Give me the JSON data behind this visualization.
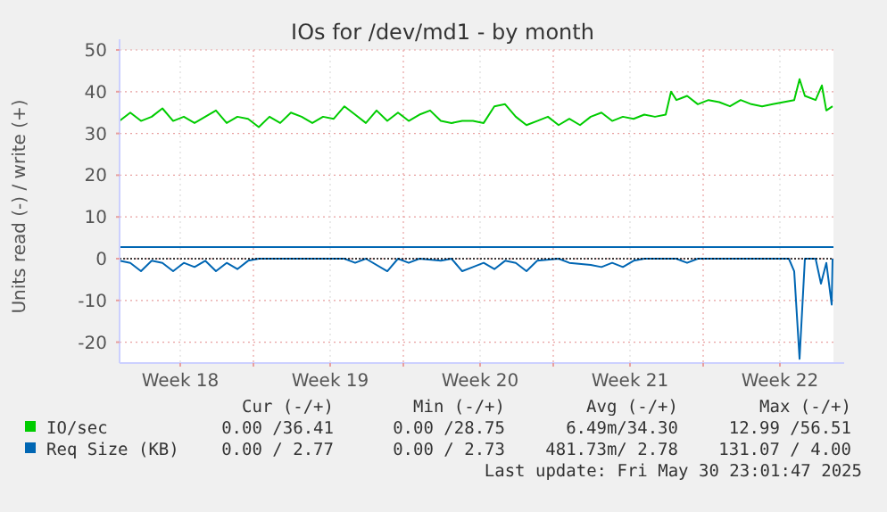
{
  "chart_data": {
    "type": "line",
    "title": "IOs for /dev/md1 - by month",
    "ylabel": "Units read (-) / write (+)",
    "xlim": [
      "2025-04-28T18:00",
      "2025-06-01T02:00"
    ],
    "xticks": [
      {
        "value": "2025-05-01T14:00",
        "label": "Week 18"
      },
      {
        "value": "2025-05-05T00:00",
        "label": null
      },
      {
        "value": "2025-05-08T14:00",
        "label": "Week 19"
      },
      {
        "value": "2025-05-12T00:00",
        "label": null
      },
      {
        "value": "2025-05-15T14:00",
        "label": "Week 20"
      },
      {
        "value": "2025-05-19T00:00",
        "label": null
      },
      {
        "value": "2025-05-22T14:00",
        "label": "Week 21"
      },
      {
        "value": "2025-05-26T00:00",
        "label": null
      },
      {
        "value": "2025-05-29T14:00",
        "label": "Week 22"
      }
    ],
    "ylim": [
      -25,
      50
    ],
    "yticks": [
      -20,
      -10,
      0,
      10,
      20,
      30,
      40,
      50
    ],
    "grid": true,
    "legend": "bottom",
    "ref_lines": [
      {
        "axis": "y",
        "value": 0,
        "color": "#000000",
        "line_style": "dotted"
      }
    ],
    "series": [
      {
        "name": "IO/sec",
        "color": "#00cc00",
        "x": [
          "2025-04-28T18:00",
          "2025-04-29T06:00",
          "2025-04-29T18:00",
          "2025-04-30T06:00",
          "2025-04-30T18:00",
          "2025-05-01T06:00",
          "2025-05-01T18:00",
          "2025-05-02T06:00",
          "2025-05-02T18:00",
          "2025-05-03T06:00",
          "2025-05-03T18:00",
          "2025-05-04T06:00",
          "2025-05-04T18:00",
          "2025-05-05T06:00",
          "2025-05-05T18:00",
          "2025-05-06T06:00",
          "2025-05-06T18:00",
          "2025-05-07T06:00",
          "2025-05-07T18:00",
          "2025-05-08T06:00",
          "2025-05-08T18:00",
          "2025-05-09T06:00",
          "2025-05-09T18:00",
          "2025-05-10T06:00",
          "2025-05-10T18:00",
          "2025-05-11T06:00",
          "2025-05-11T18:00",
          "2025-05-12T06:00",
          "2025-05-12T18:00",
          "2025-05-13T06:00",
          "2025-05-13T18:00",
          "2025-05-14T06:00",
          "2025-05-14T18:00",
          "2025-05-15T06:00",
          "2025-05-15T18:00",
          "2025-05-16T06:00",
          "2025-05-16T18:00",
          "2025-05-17T06:00",
          "2025-05-17T18:00",
          "2025-05-18T06:00",
          "2025-05-18T18:00",
          "2025-05-19T06:00",
          "2025-05-19T18:00",
          "2025-05-20T06:00",
          "2025-05-20T18:00",
          "2025-05-21T06:00",
          "2025-05-21T18:00",
          "2025-05-22T06:00",
          "2025-05-22T18:00",
          "2025-05-23T06:00",
          "2025-05-23T18:00",
          "2025-05-24T06:00",
          "2025-05-24T12:00",
          "2025-05-24T18:00",
          "2025-05-25T06:00",
          "2025-05-25T18:00",
          "2025-05-26T06:00",
          "2025-05-26T18:00",
          "2025-05-27T06:00",
          "2025-05-27T18:00",
          "2025-05-28T06:00",
          "2025-05-28T18:00",
          "2025-05-29T06:00",
          "2025-05-29T18:00",
          "2025-05-30T06:00",
          "2025-05-30T12:00",
          "2025-05-30T18:00",
          "2025-05-31T06:00",
          "2025-05-31T13:00",
          "2025-05-31T18:00",
          "2025-06-01T01:00"
        ],
        "values": [
          33,
          35,
          33,
          34,
          36,
          33,
          34,
          32.5,
          34,
          35.5,
          32.5,
          34,
          33.5,
          31.5,
          34,
          32.5,
          35,
          34,
          32.5,
          34,
          33.5,
          36.5,
          34.5,
          32.5,
          35.5,
          33,
          35,
          33,
          34.5,
          35.5,
          33,
          32.5,
          33,
          33,
          32.5,
          36.5,
          37,
          34,
          32,
          33,
          34,
          32,
          33.5,
          32,
          34,
          35,
          33,
          34,
          33.5,
          34.5,
          34,
          34.5,
          40,
          38,
          39,
          37,
          38,
          37.5,
          36.5,
          38,
          37,
          36.5,
          37,
          37.5,
          38,
          43,
          39,
          38,
          41.5,
          35.5,
          36.5
        ]
      },
      {
        "name": "Req Size (KB)",
        "color": "#0066b3",
        "x": [
          "2025-04-28T18:00",
          "2025-06-01T02:00"
        ],
        "values": [
          2.8,
          2.8
        ]
      },
      {
        "color": "#0066b3",
        "x": [
          "2025-04-28T18:00",
          "2025-04-29T06:00",
          "2025-04-29T18:00",
          "2025-04-30T06:00",
          "2025-04-30T18:00",
          "2025-05-01T06:00",
          "2025-05-01T18:00",
          "2025-05-02T06:00",
          "2025-05-02T18:00",
          "2025-05-03T06:00",
          "2025-05-03T18:00",
          "2025-05-04T06:00",
          "2025-05-04T18:00",
          "2025-05-05T06:00",
          "2025-05-09T06:00",
          "2025-05-09T18:00",
          "2025-05-10T06:00",
          "2025-05-11T06:00",
          "2025-05-11T18:00",
          "2025-05-12T06:00",
          "2025-05-12T18:00",
          "2025-05-13T18:00",
          "2025-05-14T06:00",
          "2025-05-14T18:00",
          "2025-05-15T06:00",
          "2025-05-15T18:00",
          "2025-05-16T06:00",
          "2025-05-16T18:00",
          "2025-05-17T06:00",
          "2025-05-17T18:00",
          "2025-05-18T06:00",
          "2025-05-19T06:00",
          "2025-05-19T18:00",
          "2025-05-20T18:00",
          "2025-05-21T06:00",
          "2025-05-21T18:00",
          "2025-05-22T06:00",
          "2025-05-22T18:00",
          "2025-05-23T06:00",
          "2025-05-24T18:00",
          "2025-05-25T06:00",
          "2025-05-25T18:00",
          "2025-05-30T00:00",
          "2025-05-30T06:00",
          "2025-05-30T12:00",
          "2025-05-30T18:00",
          "2025-05-31T06:00",
          "2025-05-31T12:00",
          "2025-05-31T18:00",
          "2025-06-01T00:00",
          "2025-06-01T01:00"
        ],
        "values": [
          -0.5,
          -1,
          -3,
          -0.5,
          -1,
          -3,
          -1,
          -2,
          -0.5,
          -3,
          -1,
          -2.5,
          -0.5,
          0,
          0,
          -1,
          0,
          -3,
          0,
          -1,
          0,
          -0.5,
          0,
          -3,
          -2,
          -1,
          -2.5,
          -0.5,
          -1,
          -3,
          -0.5,
          0,
          -1,
          -1.5,
          -2,
          -1,
          -2,
          -0.5,
          0,
          0,
          -1,
          0,
          0,
          -3,
          -24,
          0,
          0,
          -6,
          -1,
          -11,
          0
        ]
      }
    ],
    "annotations": [
      "Cur (-/+)",
      "Min (-/+)",
      "Avg (-/+)",
      "Max (-/+)",
      "0.00 /36.41",
      "0.00 /28.75",
      "6.49m/34.30",
      "12.99 /56.51",
      "0.00 / 2.77",
      "0.00 / 2.73",
      "481.73m/ 2.78",
      "131.07 / 4.00",
      "Last update: Fri May 30 23:01:47 2025"
    ]
  }
}
